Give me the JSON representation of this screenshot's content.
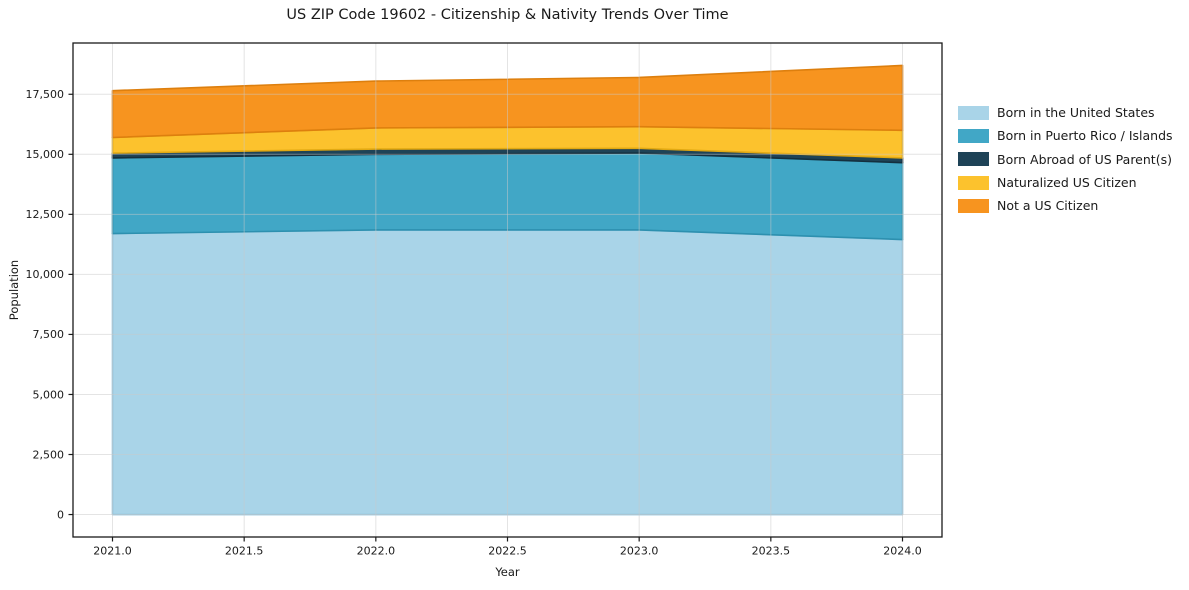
{
  "chart_data": {
    "type": "area",
    "stacked": true,
    "title": "US ZIP Code 19602 - Citizenship & Nativity Trends Over Time",
    "xlabel": "Year",
    "ylabel": "Population",
    "x": [
      2021,
      2022,
      2023,
      2024
    ],
    "series": [
      {
        "name": "Born in the United States",
        "color": "#A9D4E8",
        "edge": "#8FC2DC",
        "values": [
          11700,
          11850,
          11850,
          11450
        ]
      },
      {
        "name": "Born in Puerto Rico / Islands",
        "color": "#41A7C6",
        "edge": "#2D90AF",
        "values": [
          3150,
          3150,
          3200,
          3200
        ]
      },
      {
        "name": "Born Abroad of US Parent(s)",
        "color": "#1E4357",
        "edge": "#142F3E",
        "values": [
          200,
          220,
          200,
          200
        ]
      },
      {
        "name": "Naturalized US Citizen",
        "color": "#FCC22D",
        "edge": "#E2A912",
        "values": [
          650,
          880,
          900,
          1150
        ]
      },
      {
        "name": "Not a US Citizen",
        "color": "#F7941F",
        "edge": "#DD7F0E",
        "values": [
          1950,
          1950,
          2050,
          2700
        ]
      }
    ],
    "xticks": [
      "2021.0",
      "2021.5",
      "2022.0",
      "2022.5",
      "2023.0",
      "2023.5",
      "2024.0"
    ],
    "yticks": [
      "0",
      "2,500",
      "5,000",
      "7,500",
      "10,000",
      "12,500",
      "15,000",
      "17,500"
    ],
    "xlim": [
      2020.85,
      2024.15
    ],
    "ylim": [
      -935,
      19635
    ],
    "grid": true,
    "legend_position": "right",
    "colors": {
      "axis": "#1a1a1a",
      "grid": "#c9c9c9",
      "background": "#ffffff"
    }
  }
}
